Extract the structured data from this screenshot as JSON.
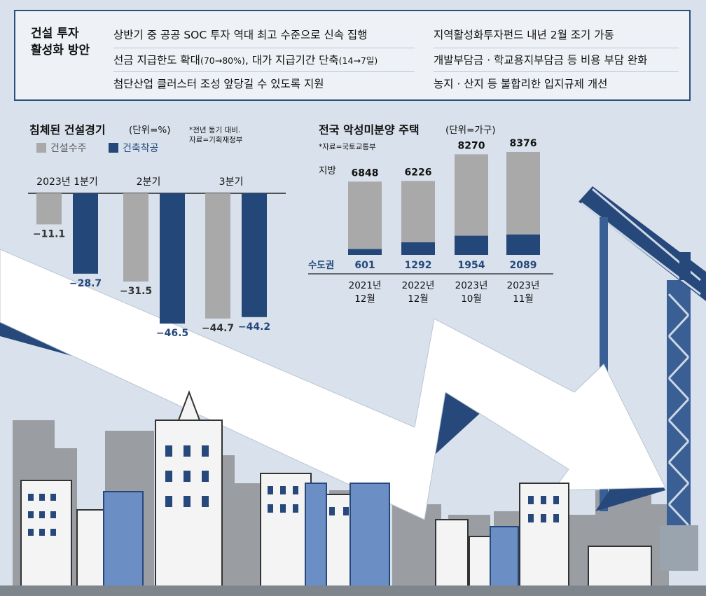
{
  "policy": {
    "title_line1": "건설 투자",
    "title_line2": "활성화 방안",
    "left_items": [
      "상반기 중 공공 SOC 투자 역대 최고 수준으로 신속 집행",
      "선금 지급한도 확대",
      "(70→80%)",
      ", 대가 지급기간 단축",
      "(14→7일)",
      "첨단산업 클러스터 조성 앞당길 수 있도록 지원"
    ],
    "right_items": [
      "지역활성화투자펀드 내년 2월 조기 가동",
      "개발부담금 · 학교용지부담금 등 비용 부담 완화",
      "농지 · 산지 등 불합리한 입지규제 개선"
    ]
  },
  "colors": {
    "navy": "#24477a",
    "gray": "#a9a9a9",
    "sky": "#d7e1ec",
    "arrow": "#ffffff",
    "arrow_shadow": "#27487a"
  },
  "chart_data": [
    {
      "type": "bar",
      "title": "침체된 건설경기",
      "unit": "(단위=%)",
      "note_line1": "*전년 동기 대비.",
      "note_line2": "자료=기획재정부",
      "categories": [
        "2023년 1분기",
        "2분기",
        "3분기"
      ],
      "series": [
        {
          "name": "건설수주",
          "values": [
            -11.1,
            -31.5,
            -44.7
          ],
          "labels": [
            "−11.1",
            "−31.5",
            "−44.7"
          ]
        },
        {
          "name": "건축착공",
          "values": [
            -28.7,
            -46.5,
            -44.2
          ],
          "labels": [
            "−28.7",
            "−46.5",
            "−44.2"
          ]
        }
      ],
      "ylim": [
        -50,
        0
      ]
    },
    {
      "type": "bar",
      "stacked": true,
      "title": "전국 악성미분양 주택",
      "unit": "(단위=가구)",
      "source": "*자료=국토교통부",
      "categories": [
        "2021년 12월",
        "2022년 12월",
        "2023년 10월",
        "2023년 11월"
      ],
      "category_lines": [
        [
          "2021년",
          "12월"
        ],
        [
          "2022년",
          "12월"
        ],
        [
          "2023년",
          "10월"
        ],
        [
          "2023년",
          "11월"
        ]
      ],
      "series": [
        {
          "name": "지방",
          "values": [
            6848,
            6226,
            8270,
            8376
          ]
        },
        {
          "name": "수도권",
          "values": [
            601,
            1292,
            1954,
            2089
          ]
        }
      ],
      "totals": [
        7449,
        7518,
        10224,
        10465
      ]
    }
  ]
}
